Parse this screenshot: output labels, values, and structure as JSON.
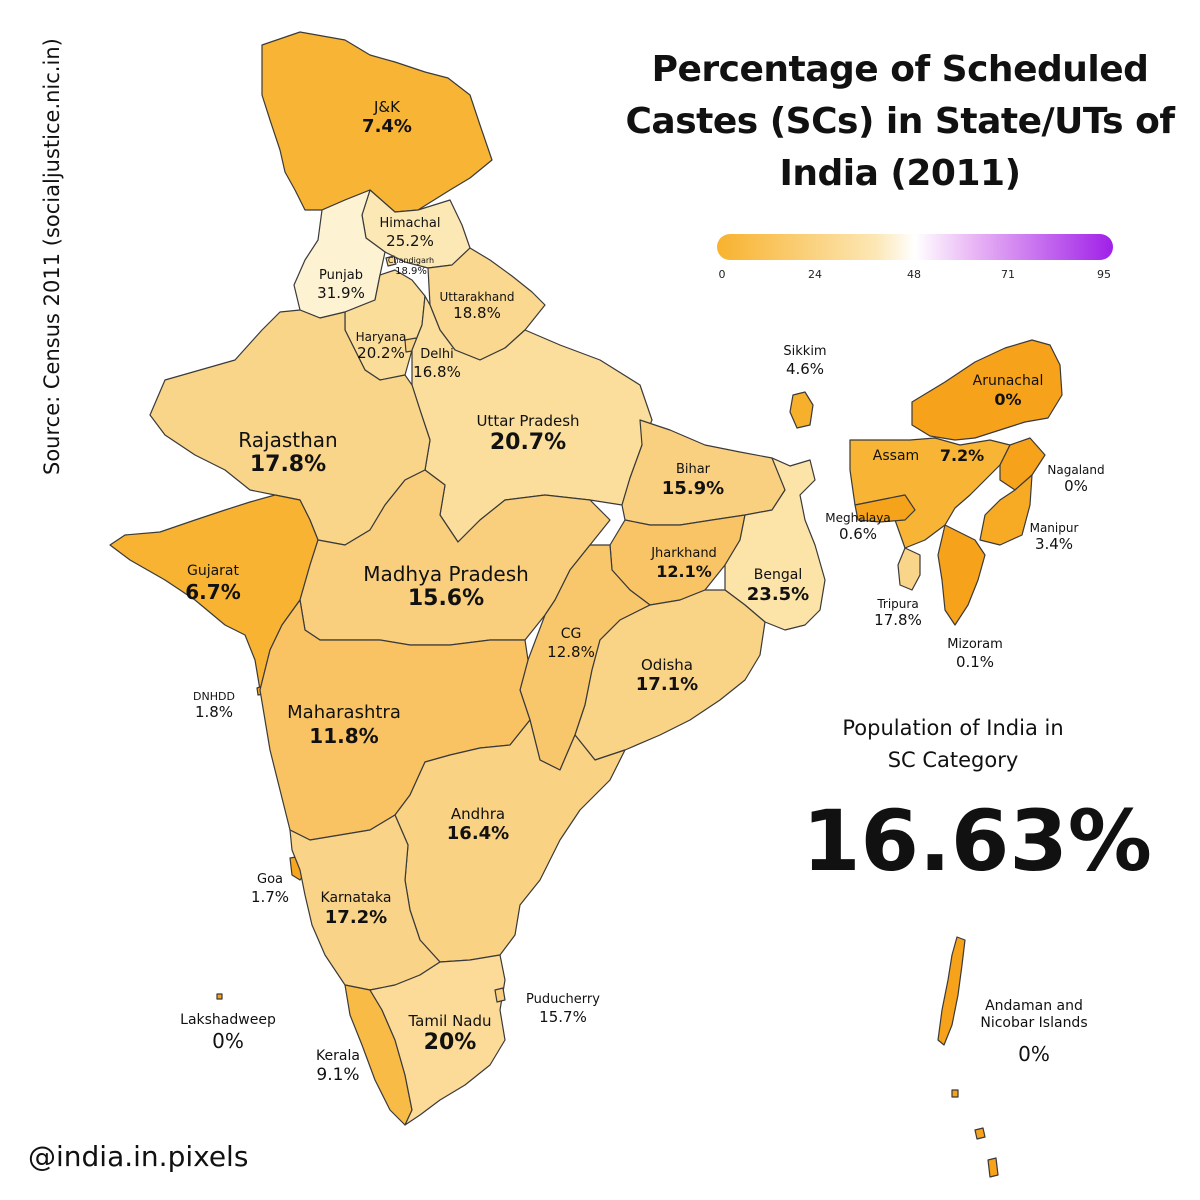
{
  "title_lines": [
    "Percentage of Scheduled",
    "Castes (SCs) in State/UTs of",
    "India (2011)"
  ],
  "source": "Source: Census 2011 (socialjustice.nic.in)",
  "handle": "@india.in.pixels",
  "legend": {
    "ticks": [
      "0",
      "24",
      "48",
      "71",
      "95"
    ],
    "colors": [
      "#f8b22e",
      "#fce7b5",
      "#ffffff",
      "#e9b5f5",
      "#a020e8"
    ]
  },
  "summary": {
    "caption_line1": "Population of India in",
    "caption_line2": "SC Category",
    "value": "16.63%"
  },
  "regions": [
    {
      "key": "jk",
      "name": "J&K",
      "value": "7.4%",
      "fill": "#f8b535"
    },
    {
      "key": "himachal",
      "name": "Himachal",
      "value": "25.2%",
      "fill": "#fce8b4"
    },
    {
      "key": "chandigarh",
      "name": "Chandigarh",
      "value": "18.9%",
      "fill": "#fad890"
    },
    {
      "key": "punjab",
      "name": "Punjab",
      "value": "31.9%",
      "fill": "#fdf2d2"
    },
    {
      "key": "uttarakhand",
      "name": "Uttarakhand",
      "value": "18.8%",
      "fill": "#fad890"
    },
    {
      "key": "haryana",
      "name": "Haryana",
      "value": "20.2%",
      "fill": "#fbdd9a"
    },
    {
      "key": "delhi",
      "name": "Delhi",
      "value": "16.8%",
      "fill": "#f9d384"
    },
    {
      "key": "uttar_pradesh",
      "name": "Uttar Pradesh",
      "value": "20.7%",
      "fill": "#fbde9c"
    },
    {
      "key": "rajasthan",
      "name": "Rajasthan",
      "value": "17.8%",
      "fill": "#f9d589"
    },
    {
      "key": "bihar",
      "name": "Bihar",
      "value": "15.9%",
      "fill": "#f9d080"
    },
    {
      "key": "sikkim",
      "name": "Sikkim",
      "value": "4.6%",
      "fill": "#f7b02b"
    },
    {
      "key": "arunachal",
      "name": "Arunachal",
      "value": "0%",
      "fill": "#f6a21a"
    },
    {
      "key": "assam",
      "name": "Assam",
      "value": "7.2%",
      "fill": "#f8b535"
    },
    {
      "key": "nagaland",
      "name": "Nagaland",
      "value": "0%",
      "fill": "#f6a21a"
    },
    {
      "key": "meghalaya",
      "name": "Meghalaya",
      "value": "0.6%",
      "fill": "#f6a31c"
    },
    {
      "key": "manipur",
      "name": "Manipur",
      "value": "3.4%",
      "fill": "#f7ab25"
    },
    {
      "key": "tripura",
      "name": "Tripura",
      "value": "17.8%",
      "fill": "#f9d589"
    },
    {
      "key": "mizoram",
      "name": "Mizoram",
      "value": "0.1%",
      "fill": "#f6a21a"
    },
    {
      "key": "gujarat",
      "name": "Gujarat",
      "value": "6.7%",
      "fill": "#f8b333"
    },
    {
      "key": "madhya_pradesh",
      "name": "Madhya Pradesh",
      "value": "15.6%",
      "fill": "#f9cf7e"
    },
    {
      "key": "jharkhand",
      "name": "Jharkhand",
      "value": "12.1%",
      "fill": "#f9c466"
    },
    {
      "key": "bengal",
      "name": "Bengal",
      "value": "23.5%",
      "fill": "#fce3a8"
    },
    {
      "key": "cg",
      "name": "CG",
      "value": "12.8%",
      "fill": "#f9c76b"
    },
    {
      "key": "odisha",
      "name": "Odisha",
      "value": "17.1%",
      "fill": "#f9d386"
    },
    {
      "key": "dnhdd",
      "name": "DNHDD",
      "value": "1.8%",
      "fill": "#f7a71f"
    },
    {
      "key": "maharashtra",
      "name": "Maharashtra",
      "value": "11.8%",
      "fill": "#f9c363"
    },
    {
      "key": "andhra",
      "name": "Andhra",
      "value": "16.4%",
      "fill": "#f9d283"
    },
    {
      "key": "goa",
      "name": "Goa",
      "value": "1.7%",
      "fill": "#f7a71f"
    },
    {
      "key": "karnataka",
      "name": "Karnataka",
      "value": "17.2%",
      "fill": "#f9d387"
    },
    {
      "key": "puducherry",
      "name": "Puducherry",
      "value": "15.7%",
      "fill": "#f9cf7f"
    },
    {
      "key": "lakshadweep",
      "name": "Lakshadweep",
      "value": "0%",
      "fill": "#f6a21a"
    },
    {
      "key": "tamil_nadu",
      "name": "Tamil Nadu",
      "value": "20%",
      "fill": "#fbdb97"
    },
    {
      "key": "kerala",
      "name": "Kerala",
      "value": "9.1%",
      "fill": "#f8bb45"
    },
    {
      "key": "andaman",
      "name": "Andaman and Nicobar Islands",
      "name_line1": "Andaman and",
      "name_line2": "Nicobar Islands",
      "value": "0%",
      "fill": "#f6a21a"
    }
  ]
}
